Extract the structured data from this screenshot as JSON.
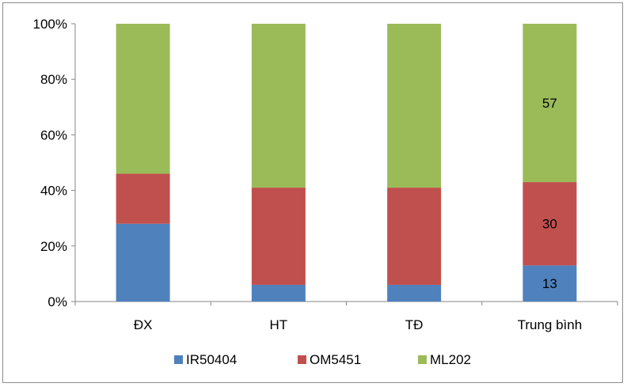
{
  "chart_data": {
    "type": "bar",
    "stacked": true,
    "percent_stacked": true,
    "categories": [
      "ĐX",
      "HT",
      "TĐ",
      "Trung bình"
    ],
    "series": [
      {
        "name": "IR50404",
        "color": "#4f81bd",
        "values": [
          28,
          6,
          6,
          13
        ]
      },
      {
        "name": "OM5451",
        "color": "#c0504d",
        "values": [
          18,
          35,
          35,
          30
        ]
      },
      {
        "name": "ML202",
        "color": "#9bbb59",
        "values": [
          54,
          59,
          59,
          57
        ]
      }
    ],
    "data_labels": [
      {
        "category": "Trung bình",
        "series": "IR50404",
        "text": "13"
      },
      {
        "category": "Trung bình",
        "series": "OM5451",
        "text": "30"
      },
      {
        "category": "Trung bình",
        "series": "ML202",
        "text": "57"
      }
    ],
    "y_ticks": [
      "0%",
      "20%",
      "40%",
      "60%",
      "80%",
      "100%"
    ],
    "ylim": [
      0,
      100
    ],
    "grid": false,
    "legend_position": "bottom"
  }
}
